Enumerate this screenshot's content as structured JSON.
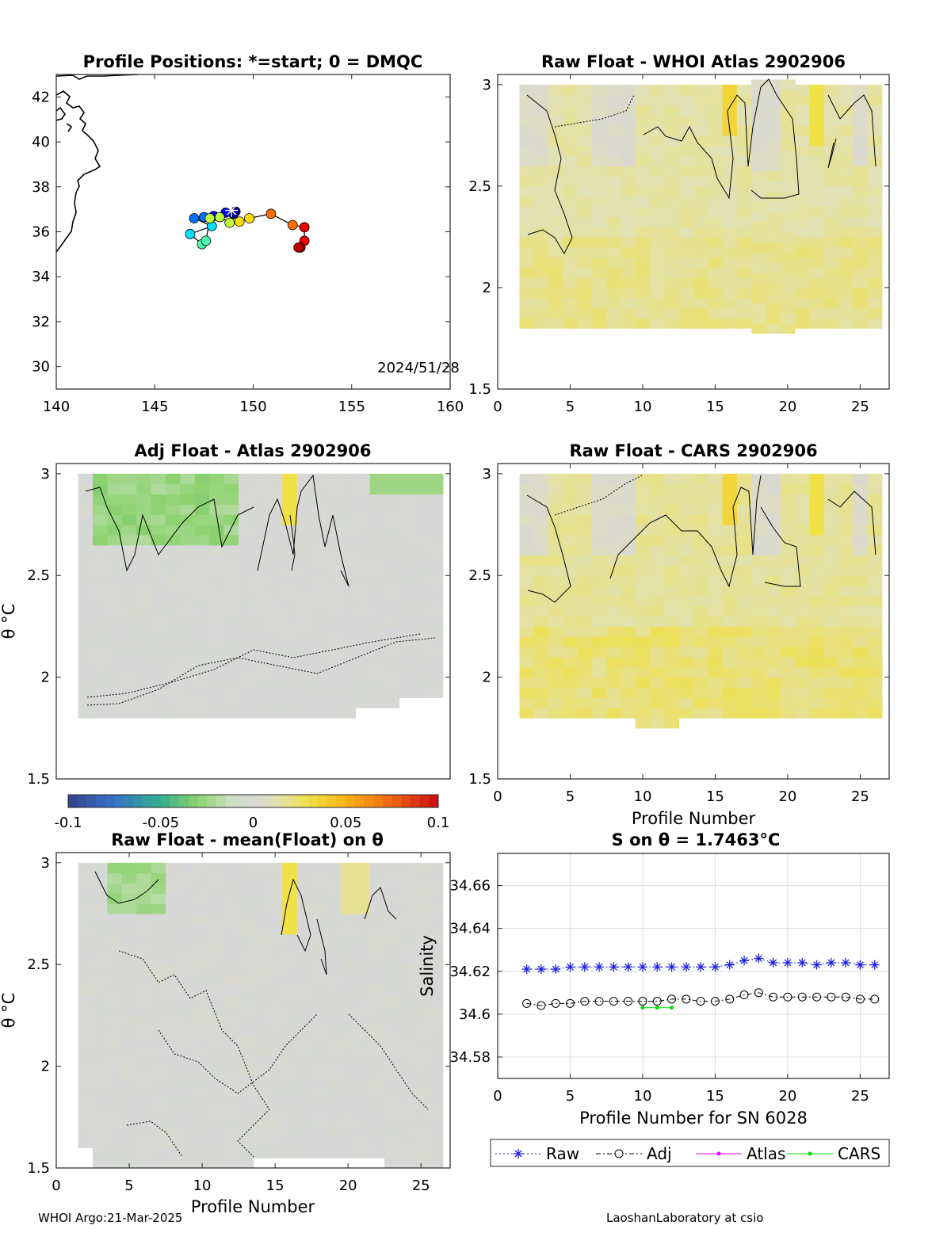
{
  "footer": {
    "left": "WHOI Argo:21-Mar-2025",
    "right": "LaoshanLaboratory at csio"
  },
  "colorbar": {
    "ticks": [
      "-0.1",
      "-0.05",
      "0",
      "0.05",
      "0.1"
    ],
    "range": [
      -0.1,
      0.1
    ],
    "colormap": "parula-like: blue to green to grey(0) to yellow to orange to red"
  },
  "chart_data": [
    {
      "id": "map",
      "type": "scatter",
      "title": "Profile Positions: *=start; 0 = DMQC",
      "xlim": [
        140,
        160
      ],
      "ylim": [
        29,
        43
      ],
      "xticks": [
        "140",
        "145",
        "150",
        "155",
        "160"
      ],
      "yticks": [
        "30",
        "32",
        "34",
        "36",
        "38",
        "40",
        "42"
      ],
      "date_label": "2024/51/28",
      "start_marker": [
        148.9,
        36.95
      ],
      "track": [
        [
          149.1,
          36.9
        ],
        [
          149.0,
          36.8
        ],
        [
          148.6,
          36.85
        ],
        [
          148.0,
          36.7
        ],
        [
          147.5,
          36.65
        ],
        [
          147.0,
          36.6
        ],
        [
          147.9,
          36.25
        ],
        [
          146.8,
          35.9
        ],
        [
          147.4,
          35.45
        ],
        [
          147.6,
          35.6
        ],
        [
          147.8,
          36.6
        ],
        [
          148.3,
          36.65
        ],
        [
          148.8,
          36.4
        ],
        [
          149.3,
          36.45
        ],
        [
          149.8,
          36.6
        ],
        [
          150.9,
          36.8
        ],
        [
          152.0,
          36.3
        ],
        [
          152.6,
          36.2
        ],
        [
          152.6,
          35.6
        ],
        [
          152.4,
          35.3
        ],
        [
          152.3,
          35.3
        ]
      ],
      "grid": false
    },
    {
      "id": "raw-whoi",
      "type": "heatmap",
      "title": "Raw Float - WHOI Atlas  2902906",
      "xlim": [
        0,
        27
      ],
      "ylim": [
        1.5,
        3.05
      ],
      "xticks": [
        "0",
        "5",
        "10",
        "15",
        "20",
        "25"
      ],
      "yticks": [
        "1.5",
        "2",
        "2.5",
        "3"
      ],
      "ylabel": "",
      "xlabel": "",
      "profile_range": [
        2,
        26
      ],
      "theta_range": [
        1.8,
        3.0
      ],
      "value_range_approx": [
        0.0,
        0.04
      ],
      "grid": false
    },
    {
      "id": "adj-atlas",
      "type": "heatmap",
      "title": "Adj Float - Atlas  2902906",
      "xlim": [
        0,
        27
      ],
      "ylim": [
        1.5,
        3.05
      ],
      "xticks": [],
      "yticks": [
        "1.5",
        "2",
        "2.5",
        "3"
      ],
      "ylabel": "θ °C",
      "profile_range": [
        2,
        26
      ],
      "theta_range": [
        1.8,
        3.0
      ],
      "value_range_approx": [
        -0.03,
        0.03
      ],
      "grid": false
    },
    {
      "id": "raw-cars",
      "type": "heatmap",
      "title": "Raw Float - CARS  2902906",
      "xlim": [
        0,
        27
      ],
      "ylim": [
        1.5,
        3.05
      ],
      "xticks": [
        "0",
        "5",
        "10",
        "15",
        "20",
        "25"
      ],
      "yticks": [
        "1.5",
        "2",
        "2.5",
        "3"
      ],
      "xlabel": "Profile Number",
      "profile_range": [
        2,
        26
      ],
      "theta_range": [
        1.75,
        3.0
      ],
      "value_range_approx": [
        0.0,
        0.04
      ],
      "grid": false
    },
    {
      "id": "raw-mean",
      "type": "heatmap",
      "title": "Raw Float - mean(Float) on θ",
      "xlim": [
        0,
        27
      ],
      "ylim": [
        1.5,
        3.05
      ],
      "xticks": [
        "0",
        "5",
        "10",
        "15",
        "20",
        "25"
      ],
      "yticks": [
        "1.5",
        "2",
        "2.5",
        "3"
      ],
      "xlabel": "Profile Number",
      "ylabel": "θ °C",
      "profile_range": [
        2,
        26
      ],
      "theta_range": [
        1.5,
        3.0
      ],
      "value_range_approx": [
        -0.01,
        0.03
      ],
      "grid": false
    },
    {
      "id": "salinity",
      "type": "line",
      "title": "S on θ = 1.7463°C",
      "xlabel": "Profile Number for SN 6028",
      "ylabel": "Salinity",
      "xlim": [
        0,
        27
      ],
      "ylim": [
        34.57,
        34.675
      ],
      "xticks": [
        "0",
        "5",
        "10",
        "15",
        "20",
        "25"
      ],
      "yticks": [
        "34.58",
        "34.6",
        "34.62",
        "34.64",
        "34.66"
      ],
      "grid": true,
      "legend": "bottom",
      "series": [
        {
          "name": "Raw",
          "color": "#1f1fe0",
          "x": [
            2,
            3,
            4,
            5,
            6,
            7,
            8,
            9,
            10,
            11,
            12,
            13,
            14,
            15,
            16,
            17,
            18,
            19,
            20,
            21,
            22,
            23,
            24,
            25,
            26
          ],
          "y": [
            34.621,
            34.621,
            34.621,
            34.622,
            34.622,
            34.622,
            34.622,
            34.622,
            34.622,
            34.622,
            34.622,
            34.622,
            34.622,
            34.622,
            34.623,
            34.625,
            34.626,
            34.624,
            34.624,
            34.624,
            34.623,
            34.624,
            34.624,
            34.623,
            34.623
          ]
        },
        {
          "name": "Adj",
          "color": "#000000",
          "x": [
            2,
            3,
            4,
            5,
            6,
            7,
            8,
            9,
            10,
            11,
            12,
            13,
            14,
            15,
            16,
            17,
            18,
            19,
            20,
            21,
            22,
            23,
            24,
            25,
            26
          ],
          "y": [
            34.605,
            34.604,
            34.605,
            34.605,
            34.606,
            34.606,
            34.606,
            34.606,
            34.606,
            34.606,
            34.607,
            34.607,
            34.606,
            34.606,
            34.607,
            34.609,
            34.61,
            34.608,
            34.608,
            34.608,
            34.608,
            34.608,
            34.608,
            34.607,
            34.607
          ]
        },
        {
          "name": "Atlas",
          "color": "#ff00ff",
          "x": [],
          "y": []
        },
        {
          "name": "CARS",
          "color": "#00e000",
          "x": [
            10,
            11,
            12
          ],
          "y": [
            34.603,
            34.603,
            34.603
          ]
        }
      ]
    }
  ]
}
